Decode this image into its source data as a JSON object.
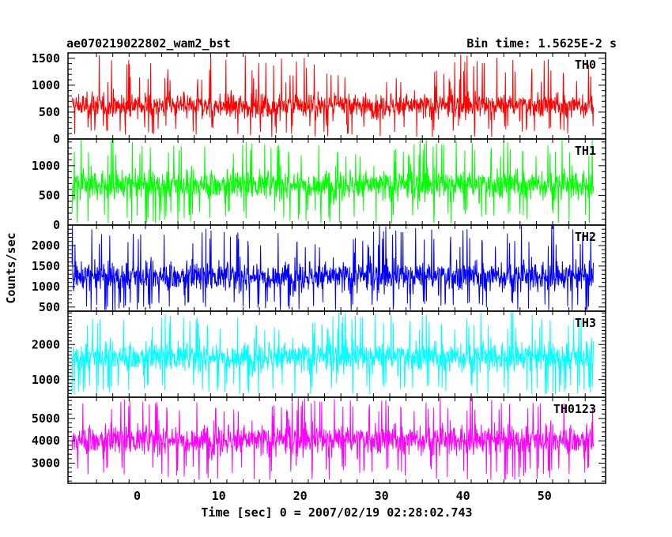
{
  "header": {
    "title": "ae070219022802_wam2_bst",
    "bin_time": "Bin time: 1.5625E-2 s"
  },
  "chart_data": {
    "type": "line",
    "title": "ae070219022802_wam2_bst",
    "subtitle": "Bin time: 1.5625E-2 s",
    "xlabel": "Time [sec] 0 = 2007/02/19 02:28:02.743",
    "ylabel": "Counts/sec",
    "xlim": [
      -8.5,
      57.5
    ],
    "x_ticks": [
      0,
      10,
      20,
      30,
      40,
      50
    ],
    "x_data_range": [
      -8,
      56
    ],
    "grid": false,
    "panels": [
      {
        "name": "TH0",
        "color": "#ff0000",
        "ylim": [
          0,
          1600
        ],
        "y_ticks": [
          0,
          500,
          1000,
          1500
        ],
        "mean": 620,
        "typical_low": 250,
        "typical_high": 1050,
        "min": 30,
        "max": 1580
      },
      {
        "name": "TH1",
        "color": "#00ff00",
        "ylim": [
          0,
          1450
        ],
        "y_ticks": [
          0,
          500,
          1000
        ],
        "mean": 680,
        "typical_low": 270,
        "typical_high": 1150,
        "min": 20,
        "max": 1450
      },
      {
        "name": "TH2",
        "color": "#0000ff",
        "ylim": [
          400,
          2500
        ],
        "y_ticks": [
          500,
          1000,
          1500,
          2000
        ],
        "mean": 1250,
        "typical_low": 650,
        "typical_high": 1950,
        "min": 420,
        "max": 2500
      },
      {
        "name": "TH3",
        "color": "#00ffff",
        "ylim": [
          500,
          2950
        ],
        "y_ticks": [
          1000,
          2000
        ],
        "mean": 1650,
        "typical_low": 900,
        "typical_high": 2400,
        "min": 580,
        "max": 2950
      },
      {
        "name": "TH0123",
        "color": "#ff00ff",
        "ylim": [
          2100,
          5950
        ],
        "y_ticks": [
          3000,
          4000,
          5000
        ],
        "mean": 4050,
        "typical_low": 2900,
        "typical_high": 5300,
        "min": 2250,
        "max": 5950
      }
    ]
  }
}
